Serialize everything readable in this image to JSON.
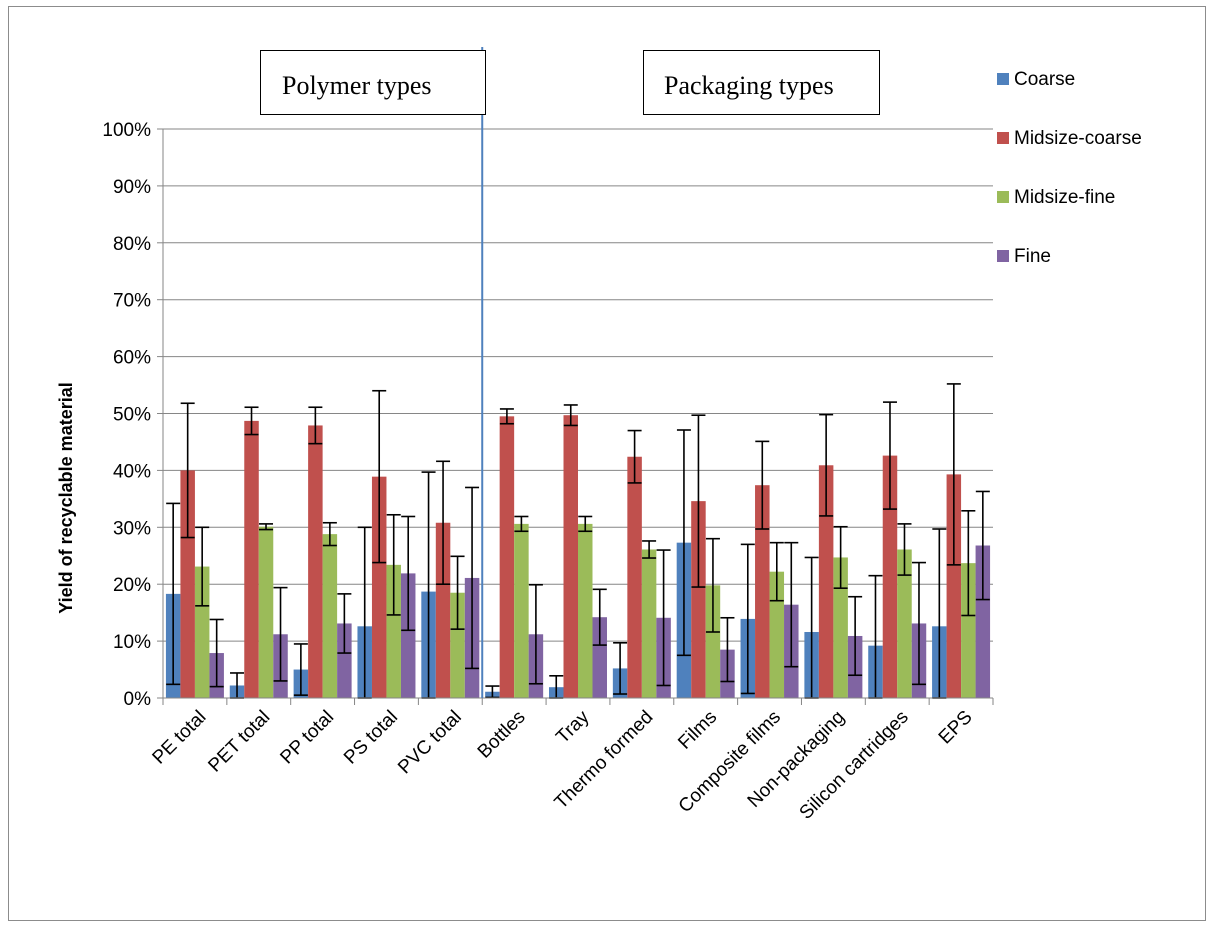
{
  "chart_data": {
    "type": "bar",
    "title": "",
    "xlabel": "",
    "ylabel": "Yield of recyclable material",
    "ylim": [
      0,
      100
    ],
    "yticks": [
      0,
      10,
      20,
      30,
      40,
      50,
      60,
      70,
      80,
      90,
      100
    ],
    "ytick_format": "percent",
    "grid": true,
    "legend_position": "top-right",
    "categories": [
      "PE total",
      "PET total",
      "PP total",
      "PS total",
      "PVC total",
      "Bottles",
      "Tray",
      "Thermo formed",
      "Films",
      "Composite films",
      "Non-packaging",
      "Silicon cartridges",
      "EPS"
    ],
    "series": [
      {
        "name": "Coarse",
        "color": "#4F81BD",
        "values": [
          18.3,
          2.2,
          5.0,
          12.6,
          18.7,
          1.1,
          1.9,
          5.2,
          27.3,
          13.9,
          11.6,
          9.2,
          12.6
        ],
        "error": [
          15.9,
          2.2,
          4.5,
          17.4,
          21.0,
          1.0,
          2.0,
          4.5,
          19.8,
          13.1,
          13.1,
          12.3,
          17.1
        ]
      },
      {
        "name": "Midsize-coarse",
        "color": "#C0504D",
        "values": [
          40.0,
          48.7,
          47.9,
          38.9,
          30.8,
          49.5,
          49.7,
          42.4,
          34.6,
          37.4,
          40.9,
          42.6,
          39.3
        ],
        "error": [
          11.8,
          2.4,
          3.2,
          15.1,
          10.8,
          1.3,
          1.8,
          4.6,
          15.1,
          7.7,
          8.9,
          9.4,
          15.9
        ]
      },
      {
        "name": "Midsize-fine",
        "color": "#9BBB59",
        "values": [
          23.1,
          30.1,
          28.8,
          23.4,
          18.5,
          30.6,
          30.6,
          26.1,
          19.8,
          22.2,
          24.7,
          26.1,
          23.7
        ],
        "error": [
          6.9,
          0.5,
          2.0,
          8.8,
          6.4,
          1.3,
          1.3,
          1.5,
          8.2,
          5.1,
          5.4,
          4.5,
          9.2
        ]
      },
      {
        "name": "Fine",
        "color": "#8064A2",
        "values": [
          7.9,
          11.2,
          13.1,
          21.9,
          21.1,
          11.2,
          14.2,
          14.1,
          8.5,
          16.4,
          10.9,
          13.1,
          26.8
        ],
        "error": [
          5.9,
          8.2,
          5.2,
          10.0,
          15.9,
          8.7,
          4.9,
          11.9,
          5.6,
          10.9,
          6.9,
          10.7,
          9.5
        ]
      }
    ],
    "annotations": {
      "polymer_box": "Polymer types",
      "packaging_box": "Packaging types"
    },
    "divider_after_category": 4
  }
}
